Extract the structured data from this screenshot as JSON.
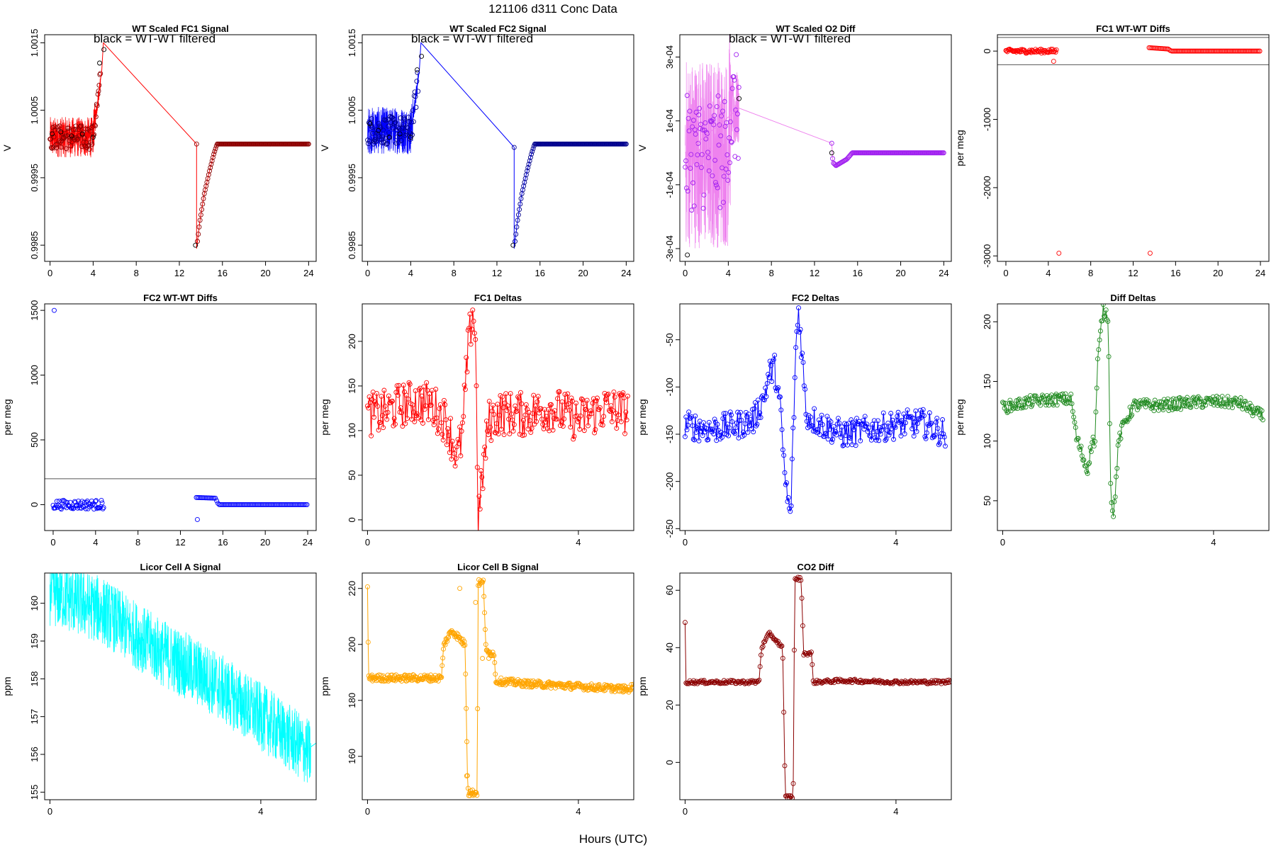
{
  "figure": {
    "title": "121106    d311    Conc Data",
    "xlabel": "Hours (UTC)"
  },
  "chart_data": [
    {
      "id": "p1",
      "type": "line",
      "title": "WT Scaled FC1 Signal",
      "annotation": "black = WT-WT filtered",
      "ylabel": "V",
      "xlim": [
        -0.5,
        24.7
      ],
      "ylim": [
        0.99826,
        1.00162
      ],
      "xticks": [
        0,
        4,
        8,
        12,
        16,
        20,
        24
      ],
      "yticks": [
        0.9985,
        0.9995,
        1.0005,
        1.0015
      ],
      "ytick_labels": [
        "0.9985",
        "0.9995",
        "1.0005",
        "1.0015"
      ],
      "color": "#ff0000",
      "dark_color": "#8b0000",
      "marker_color": "#000000",
      "noise": {
        "x": [
          0,
          4.7
        ],
        "center": 1.0001,
        "amp": 0.0003
      },
      "series": [
        {
          "name": "signal",
          "x": [
            0,
            4,
            4.4,
            4.8,
            4.95,
            13.6,
            13.6,
            13.9,
            14.3,
            14.8,
            15.2,
            15.5,
            24
          ],
          "y": [
            1.00018,
            1.00015,
            1.0006,
            1.0011,
            1.0015,
            1.0,
            0.99845,
            0.99885,
            0.99925,
            0.9996,
            0.99985,
            1.0,
            1.0
          ]
        }
      ],
      "markers": [
        {
          "name": "WT-WT filtered",
          "x": [
            0.2,
            1.0,
            2.0,
            3.0,
            4.0,
            4.6,
            5.0,
            13.5
          ],
          "y": [
            1.00015,
            1.00018,
            1.00012,
            1.00015,
            1.0001,
            1.0012,
            1.0014,
            0.9985
          ]
        }
      ]
    },
    {
      "id": "p2",
      "type": "line",
      "title": "WT Scaled FC2 Signal",
      "annotation": "black = WT-WT filtered",
      "ylabel": "V",
      "xlim": [
        -0.5,
        24.7
      ],
      "ylim": [
        0.99826,
        1.00162
      ],
      "xticks": [
        0,
        4,
        8,
        12,
        16,
        20,
        24
      ],
      "yticks": [
        0.9985,
        0.9995,
        1.0005,
        1.0015
      ],
      "ytick_labels": [
        "0.9985",
        "0.9995",
        "1.0005",
        "1.0015"
      ],
      "color": "#0000ff",
      "dark_color": "#00008b",
      "marker_color": "#000000",
      "noise": {
        "x": [
          0,
          4.7
        ],
        "center": 1.0002,
        "amp": 0.00035
      },
      "series": [
        {
          "name": "signal",
          "x": [
            0,
            4,
            4.4,
            4.8,
            4.95,
            13.6,
            13.6,
            13.9,
            14.3,
            14.8,
            15.2,
            15.5,
            24
          ],
          "y": [
            1.0002,
            1.00018,
            1.0006,
            1.0011,
            1.0015,
            0.99995,
            0.99845,
            0.99885,
            0.99925,
            0.9996,
            0.99985,
            1.0,
            1.0
          ]
        }
      ],
      "markers": [
        {
          "name": "WT-WT filtered",
          "x": [
            0.2,
            1.0,
            2.0,
            3.0,
            4.0,
            4.6,
            5.0,
            13.5
          ],
          "y": [
            1.0003,
            1.0002,
            1.0001,
            1.00015,
            1.0001,
            1.0011,
            1.0013,
            0.9985
          ]
        }
      ]
    },
    {
      "id": "p3",
      "type": "line",
      "title": "WT Scaled O2 Diff",
      "annotation": "black = WT-WT filtered",
      "ylabel": "V",
      "xlim": [
        -0.5,
        24.7
      ],
      "ylim": [
        -0.00034,
        0.00037
      ],
      "xticks": [
        0,
        4,
        8,
        12,
        16,
        20,
        24
      ],
      "yticks": [
        -0.0003,
        -0.0001,
        0.0001,
        0.0003
      ],
      "ytick_labels": [
        "-3e-04",
        "-1e-04",
        "1e-04",
        "3e-04"
      ],
      "color": "#ee82ee",
      "dark_color": "#a020f0",
      "marker_color": "#000000",
      "noise": {
        "x": [
          0,
          5
        ],
        "center": 0.0,
        "amp": 0.0003
      },
      "series": [
        {
          "name": "signal",
          "x": [
            0,
            5,
            13.6,
            13.7,
            14.0,
            14.5,
            15.0,
            15.5,
            24
          ],
          "y": [
            0.0,
            0.00014,
            3e-05,
            -3e-05,
            -4e-05,
            -3e-05,
            -2e-05,
            0.0,
            0.0
          ]
        }
      ],
      "markers": [
        {
          "name": "WT-WT filtered",
          "x": [
            0.2,
            5.0,
            13.6
          ],
          "y": [
            -0.00032,
            0.00017,
            0.0
          ]
        }
      ]
    },
    {
      "id": "p4",
      "type": "scatter",
      "title": "FC1 WT-WT Diffs",
      "annotation": "",
      "ylabel": "per meg",
      "xlim": [
        -0.8,
        24.8
      ],
      "ylim": [
        -3080,
        240
      ],
      "xticks": [
        0,
        4,
        8,
        12,
        16,
        20,
        24
      ],
      "yticks": [
        0,
        -1000,
        -2000,
        -3000
      ],
      "ytick_labels": [
        "0",
        "-1000",
        "-2000",
        "-3000"
      ],
      "hlines": [
        200,
        -200
      ],
      "color": "#ff0000",
      "clusters": [
        {
          "x": [
            0,
            4.8
          ],
          "center": 0,
          "amp": 60
        }
      ],
      "series": [
        {
          "name": "step",
          "x": [
            13.5,
            15.3,
            15.6,
            24
          ],
          "y": [
            50,
            30,
            0,
            0
          ]
        }
      ],
      "outliers": {
        "x": [
          5.0,
          13.6,
          4.5
        ],
        "y": [
          -2960,
          -2960,
          -150
        ]
      }
    },
    {
      "id": "p5",
      "type": "scatter",
      "title": "FC2 WT-WT Diffs",
      "annotation": "",
      "ylabel": "per meg",
      "xlim": [
        -0.8,
        24.8
      ],
      "ylim": [
        -200,
        1550
      ],
      "xticks": [
        0,
        4,
        8,
        12,
        16,
        20,
        24
      ],
      "yticks": [
        0,
        500,
        1000,
        1500
      ],
      "ytick_labels": [
        "0",
        "500",
        "1000",
        "1500"
      ],
      "hlines": [
        200
      ],
      "color": "#0000ff",
      "clusters": [
        {
          "x": [
            0,
            4.8
          ],
          "center": 0,
          "amp": 70
        }
      ],
      "series": [
        {
          "name": "step",
          "x": [
            13.5,
            15.3,
            15.6,
            24
          ],
          "y": [
            55,
            50,
            0,
            0
          ]
        }
      ],
      "outliers": {
        "x": [
          0.1,
          13.6
        ],
        "y": [
          1500,
          -115
        ]
      }
    },
    {
      "id": "p6",
      "type": "line",
      "title": "FC1 Deltas",
      "annotation": "",
      "ylabel": "per meg",
      "xlim": [
        -0.1,
        5.05
      ],
      "ylim": [
        -12,
        242
      ],
      "xticks": [
        0,
        4
      ],
      "yticks": [
        0,
        50,
        100,
        150,
        200
      ],
      "ytick_labels": [
        "0",
        "50",
        "100",
        "150",
        "200"
      ],
      "color": "#ff0000",
      "trace": {
        "x": [
          0.0,
          0.3,
          0.6,
          0.9,
          1.2,
          1.5,
          1.7,
          1.8,
          1.9,
          2.0,
          2.05,
          2.1,
          2.2,
          2.3,
          2.5,
          3.0,
          3.5,
          4.0,
          4.5,
          4.95
        ],
        "y": [
          118,
          120,
          128,
          132,
          130,
          110,
          70,
          95,
          185,
          238,
          200,
          0,
          60,
          110,
          120,
          118,
          125,
          112,
          125,
          120
        ],
        "amp": 25,
        "step": 0.0175
      }
    },
    {
      "id": "p7",
      "type": "line",
      "title": "FC2 Deltas",
      "annotation": "",
      "ylabel": "per meg",
      "xlim": [
        -0.1,
        5.05
      ],
      "ylim": [
        -252,
        -12
      ],
      "xticks": [
        0,
        4
      ],
      "yticks": [
        -50,
        -100,
        -150,
        -200,
        -250
      ],
      "ytick_labels": [
        "-50",
        "-100",
        "-150",
        "-200",
        "-250"
      ],
      "color": "#0000ff",
      "trace": {
        "x": [
          0.0,
          0.5,
          1.0,
          1.3,
          1.5,
          1.6,
          1.7,
          1.8,
          1.9,
          2.0,
          2.1,
          2.15,
          2.2,
          2.3,
          2.6,
          3.0,
          3.5,
          4.0,
          4.5,
          4.95
        ],
        "y": [
          -140,
          -145,
          -140,
          -135,
          -110,
          -85,
          -80,
          -120,
          -200,
          -240,
          -60,
          -18,
          -50,
          -130,
          -140,
          -150,
          -145,
          -140,
          -138,
          -150
        ],
        "amp": 15,
        "step": 0.0175
      }
    },
    {
      "id": "p8",
      "type": "line",
      "title": "Diff Deltas",
      "annotation": "",
      "ylabel": "per meg",
      "xlim": [
        -0.1,
        5.05
      ],
      "ylim": [
        25,
        215
      ],
      "xticks": [
        0,
        4
      ],
      "yticks": [
        50,
        100,
        150,
        200
      ],
      "ytick_labels": [
        "50",
        "100",
        "150",
        "200"
      ],
      "color": "#228b22",
      "trace": {
        "x": [
          0.0,
          0.5,
          1.0,
          1.3,
          1.4,
          1.5,
          1.6,
          1.7,
          1.75,
          1.8,
          1.9,
          2.0,
          2.05,
          2.1,
          2.2,
          2.3,
          2.5,
          3.0,
          3.5,
          4.0,
          4.5,
          4.95
        ],
        "y": [
          128,
          133,
          135,
          135,
          103,
          90,
          75,
          100,
          100,
          165,
          210,
          205,
          60,
          35,
          100,
          115,
          130,
          130,
          132,
          133,
          132,
          120
        ],
        "amp": 5,
        "step": 0.0175
      }
    },
    {
      "id": "p9",
      "type": "line",
      "title": "Licor Cell A Signal",
      "annotation": "",
      "ylabel": "ppm",
      "xlim": [
        -0.1,
        5.05
      ],
      "ylim": [
        154.8,
        160.8
      ],
      "xticks": [
        0,
        4
      ],
      "yticks": [
        155,
        156,
        157,
        158,
        159,
        160
      ],
      "ytick_labels": [
        "155",
        "156",
        "157",
        "158",
        "159",
        "160"
      ],
      "color": "#00ffff",
      "band": {
        "x": [
          0.0,
          1.0,
          2.0,
          3.0,
          4.0,
          4.95
        ],
        "y": [
          160.3,
          159.8,
          158.8,
          158.0,
          157.0,
          156.0
        ],
        "amp": 0.9
      },
      "tail": {
        "x": [
          4.95,
          5.05
        ],
        "y": [
          156.2,
          156.3
        ]
      }
    },
    {
      "id": "p10",
      "type": "line",
      "title": "Licor Cell B Signal",
      "annotation": "",
      "ylabel": "ppm",
      "xlim": [
        -0.1,
        5.05
      ],
      "ylim": [
        144.5,
        225.5
      ],
      "xticks": [
        0,
        4
      ],
      "yticks": [
        160,
        180,
        200,
        220
      ],
      "ytick_labels": [
        "160",
        "180",
        "200",
        "220"
      ],
      "color": "#ffa500",
      "trace": {
        "x": [
          0.0,
          0.02,
          0.04,
          1.4,
          1.45,
          1.6,
          1.75,
          1.85,
          1.9,
          1.92,
          2.08,
          2.1,
          2.2,
          2.25,
          2.3,
          2.4,
          2.43,
          3.0,
          4.0,
          4.95,
          5.05
        ],
        "y": [
          220,
          188,
          188,
          188,
          200,
          205,
          202,
          200,
          150,
          147,
          147,
          222,
          222,
          197,
          197,
          197,
          187,
          186,
          185,
          184,
          185
        ],
        "amp": 1.2,
        "step": 0.012
      },
      "spikes": {
        "x": [
          1.75,
          1.88,
          2.05,
          2.18,
          2.3
        ],
        "y": [
          220,
          153,
          215,
          195,
          195
        ]
      }
    },
    {
      "id": "p11",
      "type": "line",
      "title": "CO2 Diff",
      "annotation": "",
      "ylabel": "ppm",
      "xlim": [
        -0.1,
        5.05
      ],
      "ylim": [
        -13,
        66
      ],
      "xticks": [
        0,
        4
      ],
      "yticks": [
        0,
        20,
        40,
        60
      ],
      "ytick_labels": [
        "0",
        "20",
        "40",
        "60"
      ],
      "color": "#8b0000",
      "trace": {
        "x": [
          0.0,
          0.01,
          0.03,
          1.4,
          1.45,
          1.6,
          1.75,
          1.85,
          1.9,
          1.92,
          2.05,
          2.08,
          2.2,
          2.25,
          2.4,
          2.43,
          3.0,
          4.0,
          4.95,
          5.05
        ],
        "y": [
          49,
          28,
          28,
          28,
          40,
          45,
          42,
          40,
          -12,
          -12,
          -12,
          64,
          64,
          38,
          38,
          28,
          28.5,
          28,
          28,
          28.5
        ],
        "amp": 0.6,
        "step": 0.018
      }
    }
  ]
}
